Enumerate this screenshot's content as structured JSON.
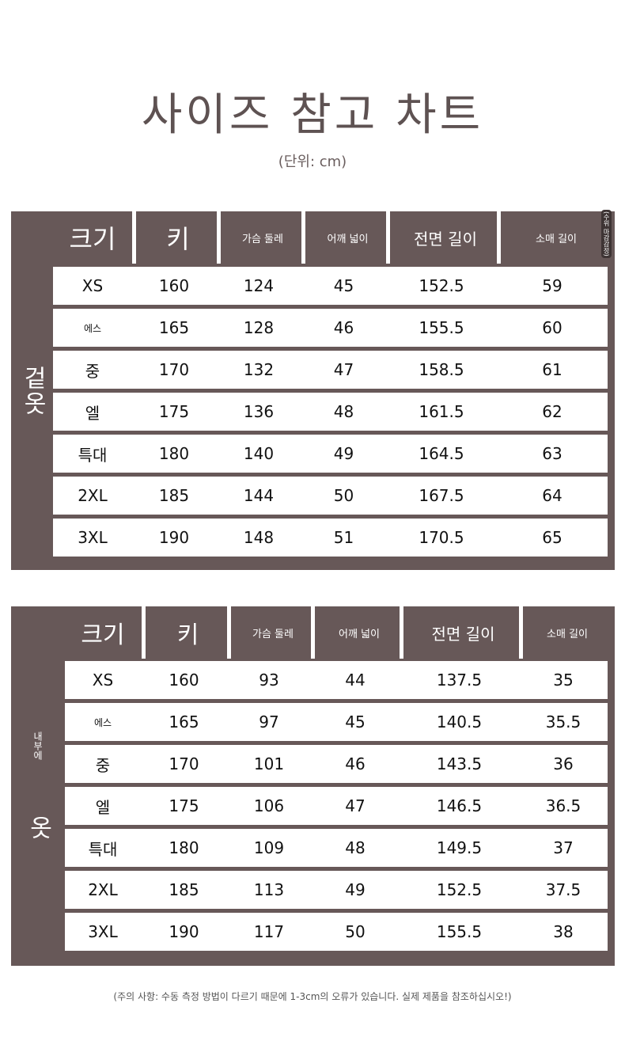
{
  "title": "사이즈 참고 차트",
  "unit": "(단위: cm)",
  "tables": [
    {
      "side_label": "겉옷",
      "side_small": "",
      "corner_note": "(수위 마감감정)",
      "headers": [
        "크기",
        "키",
        "가슴 둘레",
        "어깨 넓이",
        "전면 길이",
        "소매 길이"
      ],
      "rows": [
        [
          "XS",
          "160",
          "124",
          "45",
          "152.5",
          "59"
        ],
        [
          "에스",
          "165",
          "128",
          "46",
          "155.5",
          "60"
        ],
        [
          "중",
          "170",
          "132",
          "47",
          "158.5",
          "61"
        ],
        [
          "엘",
          "175",
          "136",
          "48",
          "161.5",
          "62"
        ],
        [
          "특대",
          "180",
          "140",
          "49",
          "164.5",
          "63"
        ],
        [
          "2XL",
          "185",
          "144",
          "50",
          "167.5",
          "64"
        ],
        [
          "3XL",
          "190",
          "148",
          "51",
          "170.5",
          "65"
        ]
      ]
    },
    {
      "side_label": "옷",
      "side_small": "내부에",
      "corner_note": "",
      "headers": [
        "크기",
        "키",
        "가슴 둘레",
        "어깨 넓이",
        "전면 길이",
        "소매 길이"
      ],
      "rows": [
        [
          "XS",
          "160",
          "93",
          "44",
          "137.5",
          "35"
        ],
        [
          "에스",
          "165",
          "97",
          "45",
          "140.5",
          "35.5"
        ],
        [
          "중",
          "170",
          "101",
          "46",
          "143.5",
          "36"
        ],
        [
          "엘",
          "175",
          "106",
          "47",
          "146.5",
          "36.5"
        ],
        [
          "특대",
          "180",
          "109",
          "48",
          "149.5",
          "37"
        ],
        [
          "2XL",
          "185",
          "113",
          "49",
          "152.5",
          "37.5"
        ],
        [
          "3XL",
          "190",
          "117",
          "50",
          "155.5",
          "38"
        ]
      ]
    }
  ],
  "note": "(주의 사항: 수동 측정 방법이 다르기 때문에 1-3cm의 오류가 있습니다. 실제 제품을 참조하십시오!)"
}
